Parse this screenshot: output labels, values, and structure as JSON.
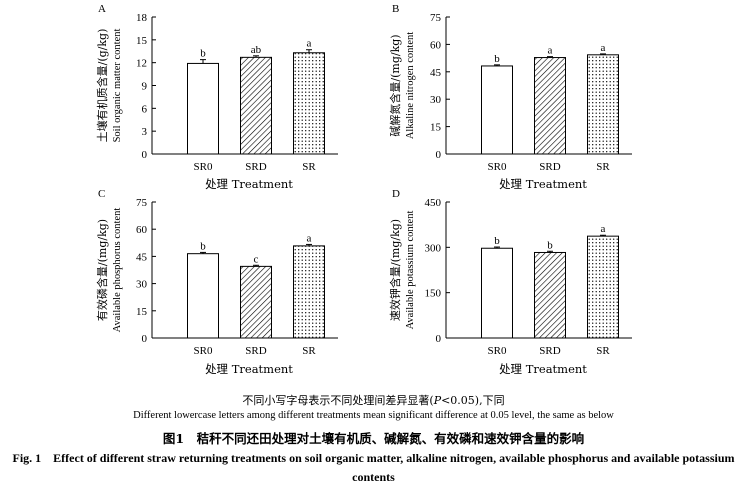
{
  "chart_data": [
    {
      "type": "bar",
      "panel_label": "A",
      "categories": [
        "SR0",
        "SRD",
        "SR"
      ],
      "values": [
        11.9,
        12.7,
        13.3
      ],
      "errors": [
        0.5,
        0.2,
        0.4
      ],
      "significance": [
        "b",
        "ab",
        "a"
      ],
      "ylim": [
        0,
        18
      ],
      "yticks": [
        0,
        3,
        6,
        9,
        12,
        15,
        18
      ],
      "ylabel_zh": "土壤有机质含量/(g/kg)",
      "ylabel_en": "Soil organic matter content",
      "xlabel": "处理 Treatment"
    },
    {
      "type": "bar",
      "panel_label": "B",
      "categories": [
        "SR0",
        "SRD",
        "SR"
      ],
      "values": [
        48.2,
        52.8,
        54.3
      ],
      "errors": [
        0.6,
        0.5,
        0.5
      ],
      "significance": [
        "b",
        "a",
        "a"
      ],
      "ylim": [
        0,
        75
      ],
      "yticks": [
        0,
        15,
        30,
        45,
        60,
        75
      ],
      "ylabel_zh": "碱解氮含量/(mg/kg)",
      "ylabel_en": "Alkaline nitrogen content",
      "xlabel": "处理 Treatment"
    },
    {
      "type": "bar",
      "panel_label": "C",
      "categories": [
        "SR0",
        "SRD",
        "SR"
      ],
      "values": [
        46.5,
        39.5,
        50.8
      ],
      "errors": [
        0.7,
        0.6,
        0.8
      ],
      "significance": [
        "b",
        "c",
        "a"
      ],
      "ylim": [
        0,
        75
      ],
      "yticks": [
        0,
        15,
        30,
        45,
        60,
        75
      ],
      "ylabel_zh": "有效磷含量/(mg/kg)",
      "ylabel_en": "Available phosphorus content",
      "xlabel": "处理 Treatment"
    },
    {
      "type": "bar",
      "panel_label": "D",
      "categories": [
        "SR0",
        "SRD",
        "SR"
      ],
      "values": [
        297,
        283,
        337
      ],
      "errors": [
        4,
        4,
        3
      ],
      "significance": [
        "b",
        "b",
        "a"
      ],
      "ylim": [
        0,
        450
      ],
      "yticks": [
        0,
        150,
        300,
        450
      ],
      "ylabel_zh": "速效钾含量/(mg/kg)",
      "ylabel_en": "Available potassium content",
      "xlabel": "处理 Treatment"
    }
  ],
  "bar_fills": [
    "white",
    "diagonal-hatch",
    "dotted"
  ],
  "notes": {
    "zh_prefix": "不同小写字母表示不同处理间差异显著(",
    "zh_p": "P",
    "zh_suffix": "<0.05),下同",
    "en": "Different lowercase letters among different treatments mean significant difference at 0.05 level, the same as below"
  },
  "caption": {
    "zh": "图1　秸秆不同还田处理对土壤有机质、碱解氮、有效磷和速效钾含量的影响",
    "en": "Fig. 1　Effect of different straw returning treatments on soil organic matter, alkaline nitrogen, available phosphorus and available potassium contents"
  }
}
